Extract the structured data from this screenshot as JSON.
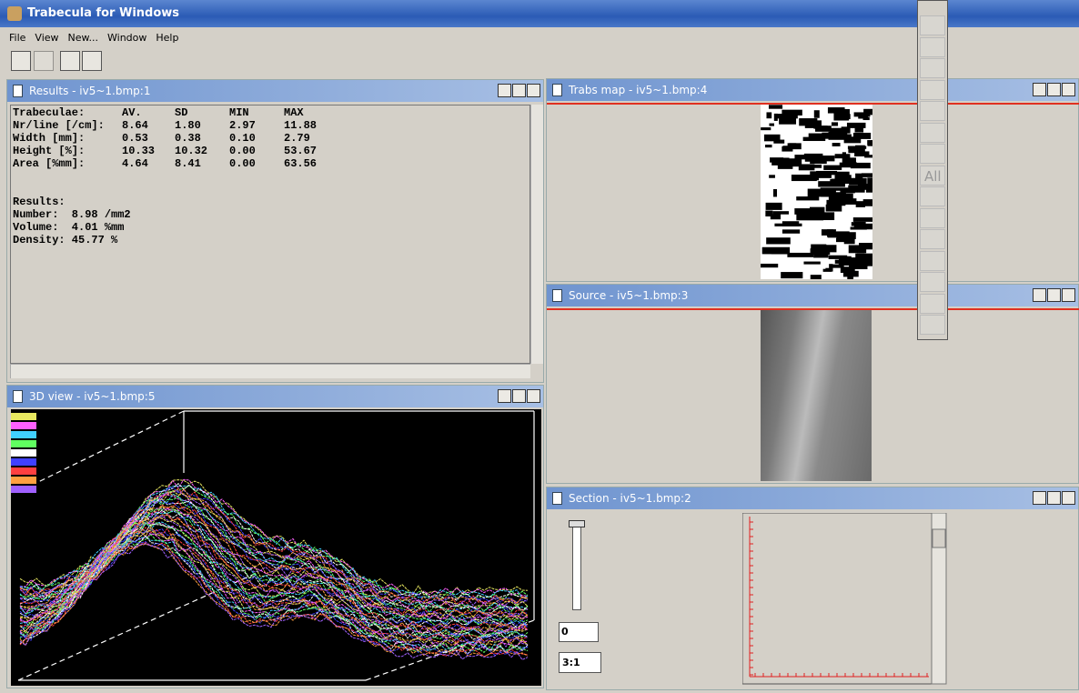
{
  "app_title": "Trabecula for Windows",
  "menu": [
    "File",
    "View",
    "New...",
    "Window",
    "Help"
  ],
  "results": {
    "title": "Results - iv5~1.bmp:1",
    "columns": [
      "Trabeculae:",
      "AV.",
      "SD",
      "MIN",
      "MAX"
    ],
    "rows": [
      [
        "Nr/line [/cm]:",
        "8.64",
        "1.80",
        "2.97",
        "11.88"
      ],
      [
        "Width [mm]:",
        "0.53",
        "0.38",
        "0.10",
        "2.79"
      ],
      [
        "Height [%]:",
        "10.33",
        "10.32",
        "0.00",
        "53.67"
      ],
      [
        "Area [%mm]:",
        "4.64",
        "8.41",
        "0.00",
        "63.56"
      ]
    ],
    "summary_heading": "Results:",
    "summary": [
      "Number:  8.98 /mm2",
      "Volume:  4.01 %mm",
      "Density: 45.77 %"
    ]
  },
  "view3d": {
    "title": "3D view - iv5~1.bmp:5"
  },
  "trabs_map": {
    "title": "Trabs map - iv5~1.bmp:4"
  },
  "source": {
    "title": "Source - iv5~1.bmp:3"
  },
  "section": {
    "title": "Section - iv5~1.bmp:2",
    "spin_value": "0",
    "zoom": "3:1"
  },
  "tool_palette": {
    "all_label": "All"
  }
}
